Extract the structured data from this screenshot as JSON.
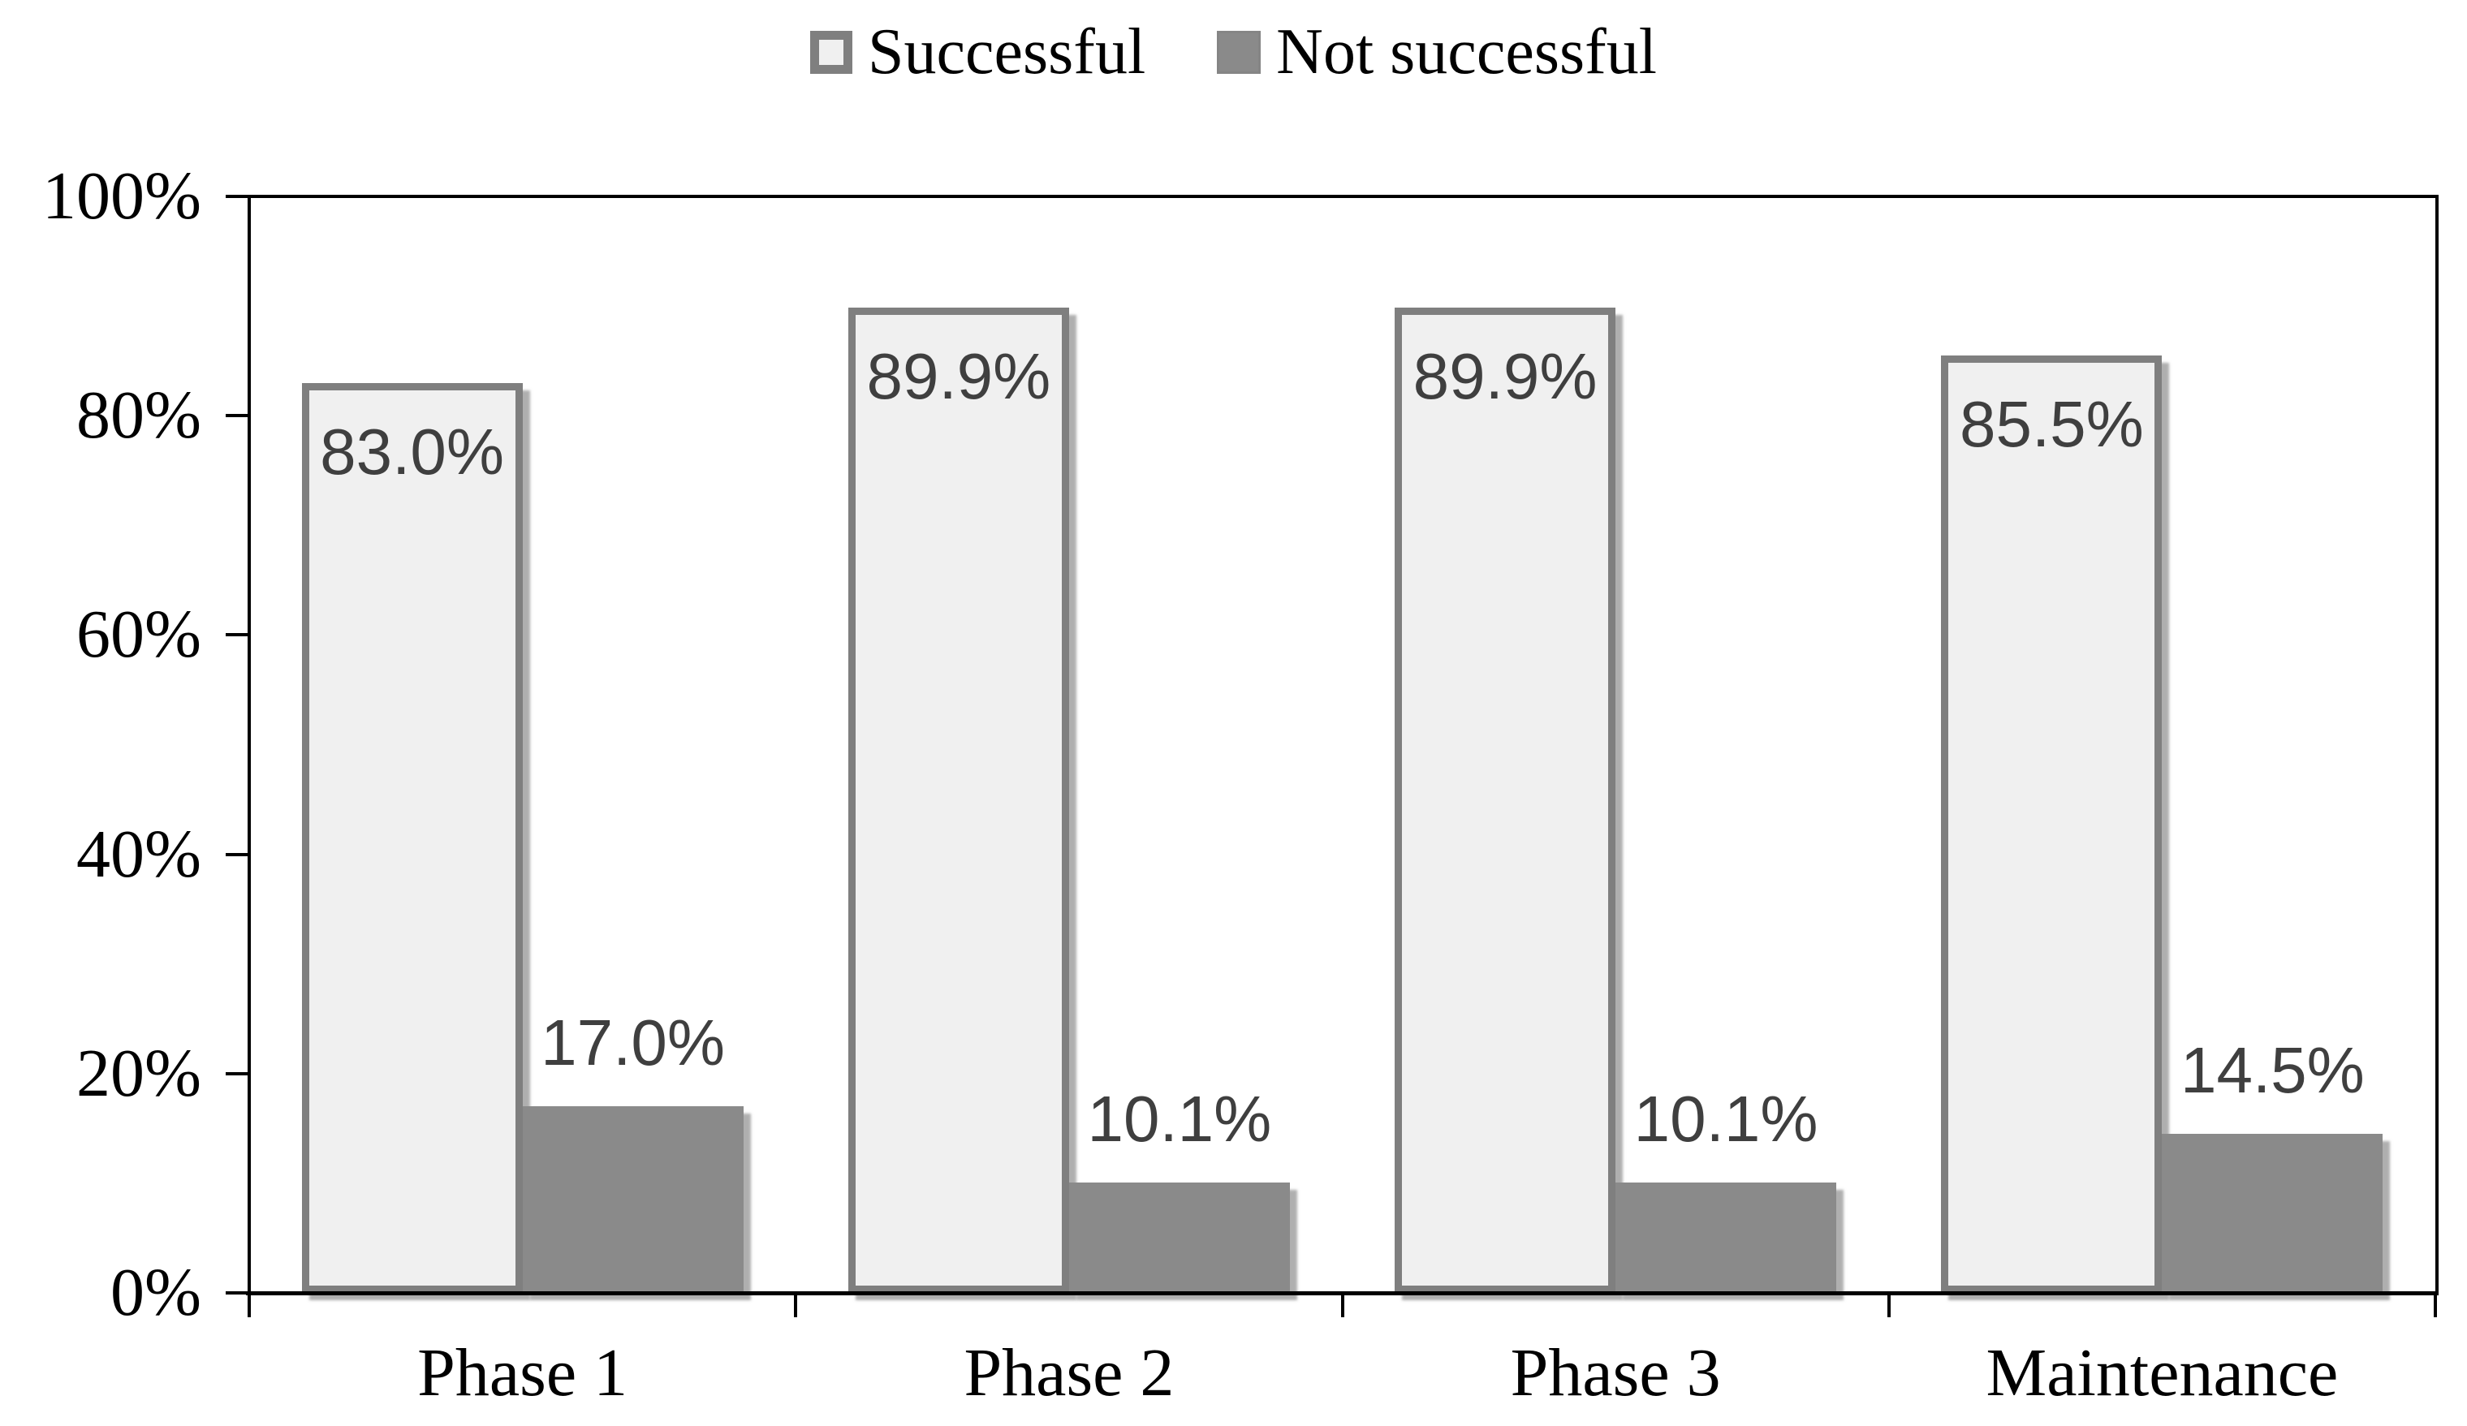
{
  "chart_data": {
    "type": "bar",
    "title": "",
    "categories": [
      "Phase 1",
      "Phase 2",
      "Phase 3",
      "Maintenance"
    ],
    "series": [
      {
        "name": "Successful",
        "values": [
          83.0,
          89.9,
          89.9,
          85.5
        ],
        "labels": [
          "83.0%",
          "89.9%",
          "89.9%",
          "85.5%"
        ],
        "fill": "#f0f0f0",
        "border": "#7f7f7f"
      },
      {
        "name": "Not successful",
        "values": [
          17.0,
          10.1,
          10.1,
          14.5
        ],
        "labels": [
          "17.0%",
          "10.1%",
          "10.1%",
          "14.5%"
        ],
        "fill": "#8a8a8a",
        "border": "#8a8a8a"
      }
    ],
    "xlabel": "",
    "ylabel": "",
    "ylim": [
      0,
      100
    ],
    "ytick_values": [
      100,
      80,
      60,
      40,
      20,
      0
    ],
    "ytick_labels": [
      "100%",
      "80%",
      "60%",
      "40%",
      "20%",
      "0%"
    ],
    "legend_position": "top-center",
    "grid": false,
    "data_label_color": "#3f3f3f",
    "axis_color": "#000000",
    "background_color": "#ffffff"
  }
}
